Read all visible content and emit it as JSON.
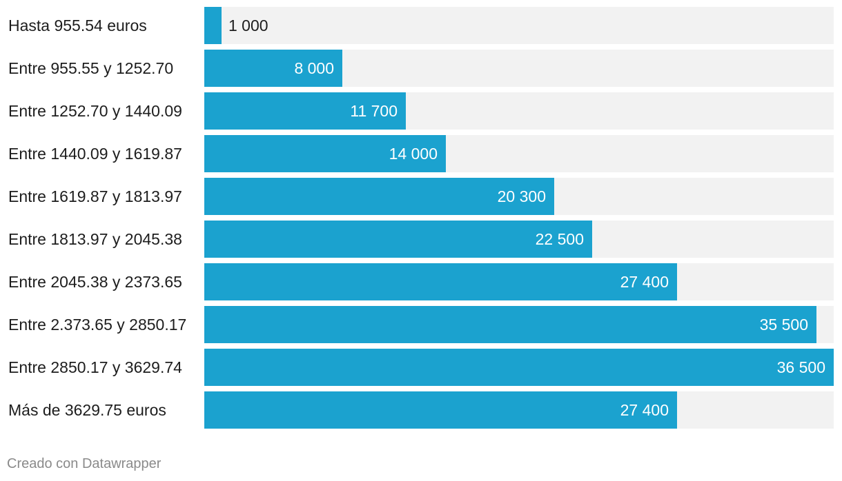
{
  "chart_data": {
    "type": "bar",
    "orientation": "horizontal",
    "categories": [
      "Hasta 955.54 euros",
      "Entre 955.55 y 1252.70",
      "Entre 1252.70 y 1440.09",
      "Entre 1440.09 y 1619.87",
      "Entre 1619.87 y 1813.97",
      "Entre 1813.97 y 2045.38",
      "Entre 2045.38 y 2373.65",
      "Entre 2.373.65 y 2850.17",
      "Entre 2850.17 y 3629.74",
      "Más de 3629.75 euros"
    ],
    "values": [
      1000,
      8000,
      11700,
      14000,
      20300,
      22500,
      27400,
      35500,
      36500,
      27400
    ],
    "value_labels": [
      "1 000",
      "8 000",
      "11 700",
      "14 000",
      "20 300",
      "22 500",
      "27 400",
      "35 500",
      "36 500",
      "27 400"
    ],
    "xlim": [
      0,
      36500
    ],
    "grid": false,
    "legend": "none",
    "colors": {
      "bar": "#1ba2cf",
      "track": "#f2f2f2"
    }
  },
  "footer": {
    "credit": "Creado con Datawrapper"
  }
}
